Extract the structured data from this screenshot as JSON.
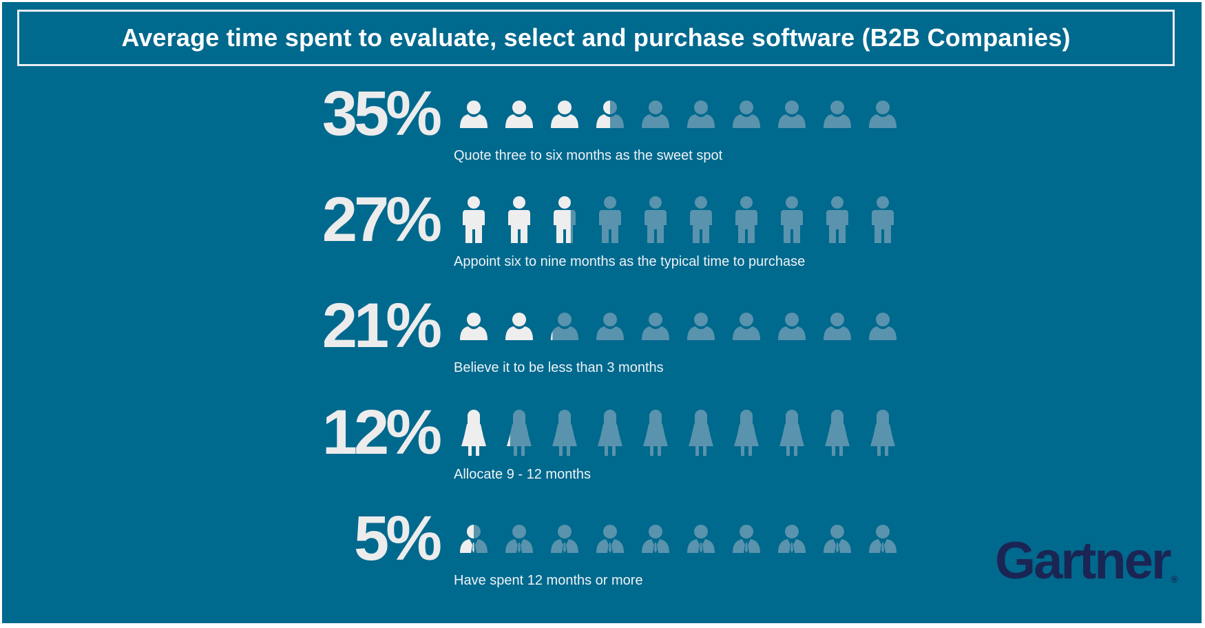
{
  "chart_data": {
    "type": "pictograph",
    "title": "Average time spent to evaluate, select and purchase software (B2B Companies)",
    "icons_per_row": 10,
    "rows": [
      {
        "label": "35%",
        "value": 35,
        "caption": "Quote three to six months as the sweet spot",
        "icon": "person-bust"
      },
      {
        "label": "27%",
        "value": 27,
        "caption": "Appoint six to nine months as the typical time to purchase",
        "icon": "person-full"
      },
      {
        "label": "21%",
        "value": 21,
        "caption": "Believe it to be less than 3 months",
        "icon": "person-bust"
      },
      {
        "label": "12%",
        "value": 12,
        "caption": "Allocate 9 - 12 months",
        "icon": "woman"
      },
      {
        "label": "5%",
        "value": 5,
        "caption": "Have spent 12 months or more",
        "icon": "man-tie"
      }
    ]
  },
  "logo": {
    "text": "Gartner",
    "mark": "®"
  },
  "colors": {
    "background": "#00698e",
    "filled": "#eeeeee",
    "empty": "#5a93ad",
    "logo": "#1b2553"
  }
}
